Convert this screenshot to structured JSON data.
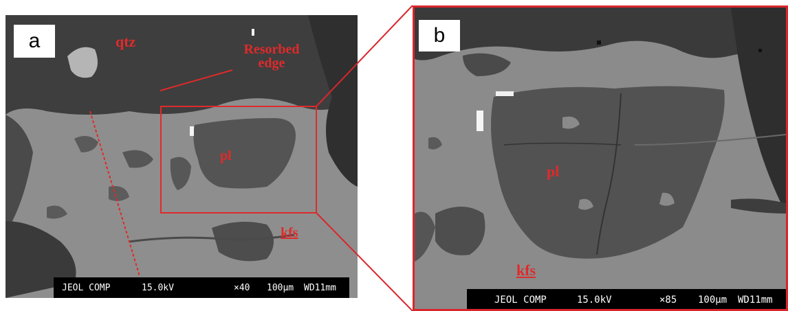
{
  "figure": {
    "panel_a": {
      "letter": "a",
      "labels": {
        "qtz": "qtz",
        "resorbed_edge": "Resorbed edge",
        "pl": "pl",
        "kfs": "kfs"
      },
      "scale_info": {
        "instrument": "JEOL COMP",
        "voltage": "15.0kV",
        "magnification": "×40",
        "scale": "100μm",
        "working_distance": "WD11mm"
      }
    },
    "panel_b": {
      "letter": "b",
      "labels": {
        "pl": "pl",
        "kfs": "kfs"
      },
      "scale_info": {
        "instrument": "JEOL COMP",
        "voltage": "15.0kV",
        "magnification": "×85",
        "scale": "100μm",
        "working_distance": "WD11mm"
      }
    },
    "colors": {
      "annotation": "#e02a2a",
      "frame": "#d8262b",
      "kfs_matrix": "#8c8c8c",
      "plagioclase": "#525252",
      "quartz": "#3c3c3c"
    }
  }
}
